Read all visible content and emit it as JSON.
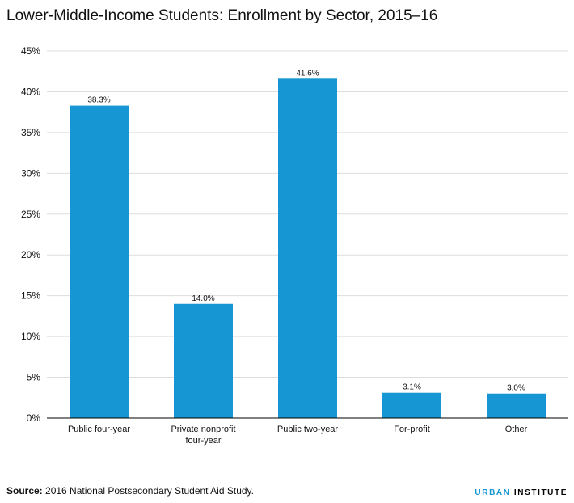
{
  "chart_data": {
    "type": "bar",
    "title": "Lower-Middle-Income Students: Enrollment by Sector, 2015–16",
    "categories": [
      [
        "Public four-year"
      ],
      [
        "Private nonprofit",
        "four-year"
      ],
      [
        "Public two-year"
      ],
      [
        "For-profit"
      ],
      [
        "Other"
      ]
    ],
    "values": [
      38.3,
      14.0,
      41.6,
      3.1,
      3.0
    ],
    "value_labels": [
      "38.3%",
      "14.0%",
      "41.6%",
      "3.1%",
      "3.0%"
    ],
    "y_ticks": [
      "0%",
      "5%",
      "10%",
      "15%",
      "20%",
      "25%",
      "30%",
      "35%",
      "40%",
      "45%"
    ],
    "ylim": [
      0,
      45
    ],
    "xlabel": "",
    "ylabel": "",
    "grid": true,
    "bar_color": "#1696d2",
    "grid_color": "#dedddd"
  },
  "source": {
    "label": "Source:",
    "text": "2016 National Postsecondary Student Aid Study."
  },
  "brand": {
    "urban": "URBAN",
    "institute": "INSTITUTE",
    "accent_color": "#1696d2"
  }
}
